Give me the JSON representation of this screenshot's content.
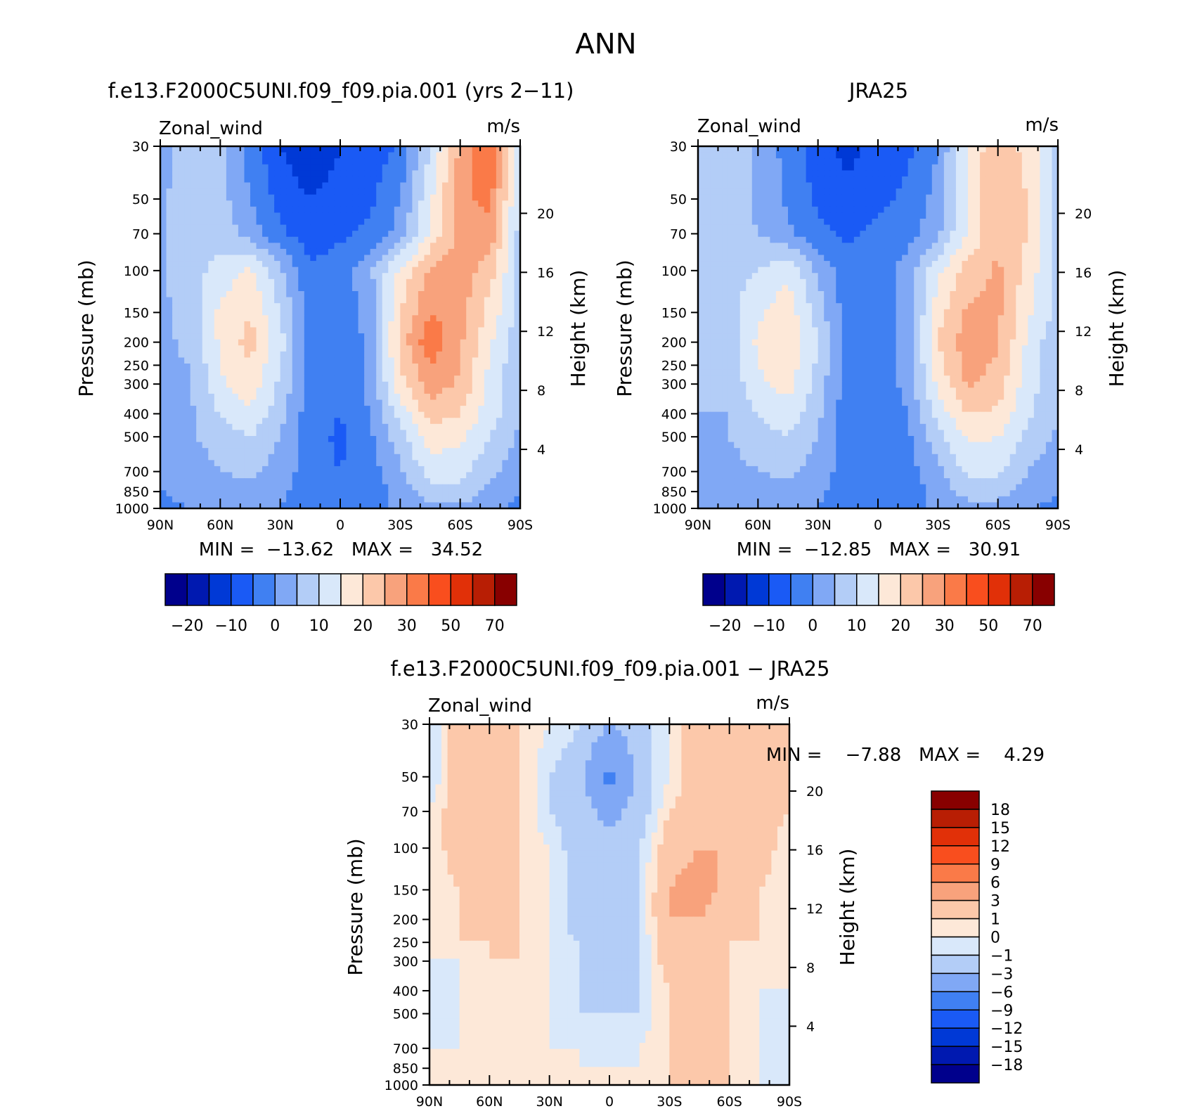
{
  "figure_title": "ANN",
  "colors": {
    "full_field_palette": [
      "#00008c",
      "#0019b0",
      "#0039d6",
      "#1a5af5",
      "#4080f2",
      "#80a8f5",
      "#b3cdf7",
      "#d9e8fa",
      "#fde8d8",
      "#fcc8aa",
      "#f8a27c",
      "#fa7a48",
      "#f94e1e",
      "#e13008",
      "#b81e04",
      "#880000"
    ],
    "difference_palette": [
      "#00008c",
      "#0019b0",
      "#0039d6",
      "#1a5af5",
      "#4080f2",
      "#80a8f5",
      "#b3cdf7",
      "#d9e8fa",
      "#fde8d8",
      "#fcc8aa",
      "#f8a27c",
      "#fa7a48",
      "#f94e1e",
      "#e13008",
      "#b81e04",
      "#880000"
    ]
  },
  "panels": {
    "model": {
      "title": "f.e13.F2000C5UNI.f09_f09.pia.001 (yrs 2−11)",
      "variable": "Zonal_wind",
      "units": "m/s",
      "min_max": "MIN =  −13.62   MAX =   34.52"
    },
    "obs": {
      "title": "JRA25",
      "variable": "Zonal_wind",
      "units": "m/s",
      "min_max": "MIN =  −12.85   MAX =   30.91"
    },
    "diff": {
      "title": "f.e13.F2000C5UNI.f09_f09.pia.001 − JRA25",
      "variable": "Zonal_wind",
      "units": "m/s",
      "min_max": "MIN =    −7.88   MAX =    4.29"
    }
  },
  "axes": {
    "ylabel": "Pressure (mb)",
    "y2label": "Height (km)",
    "pressure_ticks": [
      "30",
      "50",
      "70",
      "100",
      "150",
      "200",
      "250",
      "300",
      "400",
      "500",
      "700",
      "850",
      "1000"
    ],
    "height_ticks": [
      "4",
      "8",
      "12",
      "16",
      "20"
    ],
    "lat_ticks": [
      "90N",
      "60N",
      "30N",
      "0",
      "30S",
      "60S",
      "90S"
    ]
  },
  "colorbars": {
    "field_labels": [
      "−20",
      "−10",
      "0",
      "10",
      "20",
      "30",
      "50",
      "70"
    ],
    "diff_labels": [
      "18",
      "15",
      "12",
      "9",
      "6",
      "3",
      "1",
      "0",
      "−1",
      "−3",
      "−6",
      "−9",
      "−12",
      "−15",
      "−18"
    ]
  },
  "chart_data": [
    {
      "type": "heatmap",
      "title": "f.e13.F2000C5UNI.f09_f09.pia.001 (yrs 2−11)",
      "subtitle": "Zonal_wind",
      "units": "m/s",
      "ylabel": "Pressure (mb)",
      "y2label": "Height (km)",
      "x": [
        90,
        60,
        30,
        0,
        -30,
        -60,
        -90
      ],
      "y": [
        30,
        50,
        70,
        100,
        150,
        200,
        250,
        300,
        400,
        500,
        700,
        850,
        1000
      ],
      "values": [
        [
          2,
          10,
          6,
          -2,
          -10,
          -14,
          -10,
          -8,
          -4,
          10,
          26,
          34,
          8
        ],
        [
          3,
          10,
          7,
          0,
          -7,
          -10,
          -8,
          -6,
          0,
          14,
          28,
          32,
          8
        ],
        [
          4,
          9,
          8,
          3,
          -4,
          -8,
          -6,
          -4,
          2,
          16,
          27,
          28,
          8
        ],
        [
          4,
          8,
          12,
          16,
          6,
          -4,
          -2,
          4,
          16,
          26,
          28,
          22,
          8
        ],
        [
          4,
          7,
          16,
          20,
          10,
          -3,
          -4,
          2,
          20,
          30,
          27,
          18,
          8
        ],
        [
          4,
          6,
          16,
          22,
          12,
          -3,
          -5,
          2,
          22,
          34,
          26,
          16,
          6
        ],
        [
          4,
          5,
          15,
          20,
          10,
          -3,
          -5,
          2,
          20,
          30,
          25,
          14,
          6
        ],
        [
          4,
          5,
          14,
          18,
          9,
          -3,
          -5,
          2,
          18,
          28,
          24,
          13,
          6
        ],
        [
          3,
          4,
          10,
          14,
          7,
          -3,
          -5,
          0,
          12,
          22,
          20,
          12,
          6
        ],
        [
          2,
          4,
          8,
          10,
          5,
          -3,
          -6,
          -1,
          8,
          18,
          16,
          10,
          4
        ],
        [
          1,
          2,
          5,
          6,
          3,
          -3,
          -5,
          -2,
          4,
          12,
          12,
          6,
          2
        ],
        [
          0,
          1,
          3,
          3,
          1,
          -3,
          -5,
          -3,
          2,
          8,
          8,
          4,
          0
        ],
        [
          -1,
          0,
          1,
          1,
          0,
          -2,
          -4,
          -2,
          1,
          4,
          4,
          1,
          -1
        ]
      ],
      "value_range": [
        -13.62,
        34.52
      ],
      "colorbar_labels": [
        -20,
        -10,
        0,
        10,
        20,
        30,
        50,
        70
      ]
    },
    {
      "type": "heatmap",
      "title": "JRA25",
      "subtitle": "Zonal_wind",
      "units": "m/s",
      "ylabel": "Pressure (mb)",
      "y2label": "Height (km)",
      "x": [
        90,
        60,
        30,
        0,
        -30,
        -60,
        -90
      ],
      "y": [
        30,
        50,
        70,
        100,
        150,
        200,
        250,
        300,
        400,
        500,
        700,
        850,
        1000
      ],
      "values": [
        [
          6,
          8,
          4,
          -2,
          -8,
          -12,
          -8,
          -6,
          0,
          16,
          24,
          18,
          8
        ],
        [
          6,
          8,
          4,
          -1,
          -6,
          -8,
          -6,
          -4,
          2,
          16,
          24,
          20,
          8
        ],
        [
          6,
          8,
          5,
          1,
          -4,
          -6,
          -4,
          -2,
          4,
          16,
          24,
          20,
          8
        ],
        [
          6,
          8,
          10,
          14,
          4,
          -3,
          -2,
          2,
          14,
          22,
          26,
          18,
          8
        ],
        [
          6,
          8,
          14,
          18,
          8,
          -3,
          -3,
          2,
          18,
          26,
          26,
          16,
          8
        ],
        [
          6,
          7,
          16,
          20,
          10,
          -3,
          -4,
          2,
          20,
          28,
          26,
          14,
          6
        ],
        [
          6,
          6,
          15,
          18,
          9,
          -3,
          -4,
          2,
          18,
          27,
          24,
          13,
          6
        ],
        [
          6,
          6,
          14,
          17,
          8,
          -3,
          -4,
          2,
          16,
          26,
          23,
          12,
          6
        ],
        [
          5,
          5,
          10,
          13,
          6,
          -3,
          -5,
          0,
          12,
          20,
          19,
          11,
          6
        ],
        [
          4,
          5,
          8,
          10,
          5,
          -3,
          -5,
          -1,
          8,
          16,
          15,
          9,
          4
        ],
        [
          2,
          3,
          5,
          6,
          3,
          -3,
          -5,
          -2,
          4,
          11,
          11,
          5,
          2
        ],
        [
          1,
          2,
          3,
          3,
          1,
          -3,
          -5,
          -3,
          2,
          7,
          7,
          3,
          0
        ],
        [
          0,
          1,
          1,
          1,
          0,
          -2,
          -4,
          -2,
          1,
          3,
          3,
          0,
          -1
        ]
      ],
      "value_range": [
        -12.85,
        30.91
      ],
      "colorbar_labels": [
        -20,
        -10,
        0,
        10,
        20,
        30,
        50,
        70
      ]
    },
    {
      "type": "heatmap",
      "title": "f.e13.F2000C5UNI.f09_f09.pia.001 − JRA25",
      "subtitle": "Zonal_wind",
      "units": "m/s",
      "ylabel": "Pressure (mb)",
      "y2label": "Height (km)",
      "x": [
        90,
        60,
        30,
        0,
        -30,
        -60,
        -90
      ],
      "y": [
        30,
        50,
        70,
        100,
        150,
        200,
        250,
        300,
        400,
        500,
        700,
        850,
        1000
      ],
      "values": [
        [
          -1,
          2,
          3,
          1,
          0,
          -1,
          -3,
          -2,
          0,
          2,
          3,
          2,
          1
        ],
        [
          -1,
          2,
          3,
          1,
          -1,
          -2,
          -7,
          -2,
          0,
          2,
          3,
          2,
          1
        ],
        [
          0,
          2,
          2,
          1,
          -1,
          -2,
          -4,
          -2,
          1,
          2,
          3,
          2,
          1
        ],
        [
          0,
          2,
          2,
          1,
          0,
          -2,
          -2,
          -1,
          2,
          3,
          3,
          2,
          0
        ],
        [
          0,
          1,
          2,
          1,
          0,
          -2,
          -2,
          -1,
          3,
          4,
          2,
          1,
          0
        ],
        [
          0,
          1,
          2,
          1,
          0,
          -2,
          -2,
          -1,
          3,
          3,
          2,
          1,
          0
        ],
        [
          0,
          1,
          1,
          1,
          0,
          -1,
          -2,
          -1,
          2,
          2,
          1,
          1,
          0
        ],
        [
          0,
          0,
          1,
          1,
          0,
          -1,
          -2,
          -1,
          2,
          2,
          1,
          0,
          0
        ],
        [
          -1,
          0,
          1,
          0,
          0,
          -1,
          -2,
          -1,
          1,
          1,
          1,
          0,
          0
        ],
        [
          -1,
          0,
          1,
          0,
          0,
          -1,
          -1,
          -1,
          1,
          1,
          1,
          0,
          -1
        ],
        [
          0,
          0,
          1,
          0,
          0,
          0,
          -1,
          0,
          1,
          1,
          1,
          0,
          -1
        ],
        [
          0,
          0,
          1,
          0,
          0,
          0,
          0,
          0,
          1,
          1,
          1,
          0,
          -1
        ],
        [
          0,
          0,
          1,
          1,
          0,
          0,
          0,
          0,
          1,
          1,
          1,
          0,
          -1
        ]
      ],
      "value_range": [
        -7.88,
        4.29
      ],
      "colorbar_labels": [
        -18,
        -15,
        -12,
        -9,
        -6,
        -3,
        -1,
        0,
        1,
        3,
        6,
        9,
        12,
        15,
        18
      ]
    }
  ]
}
